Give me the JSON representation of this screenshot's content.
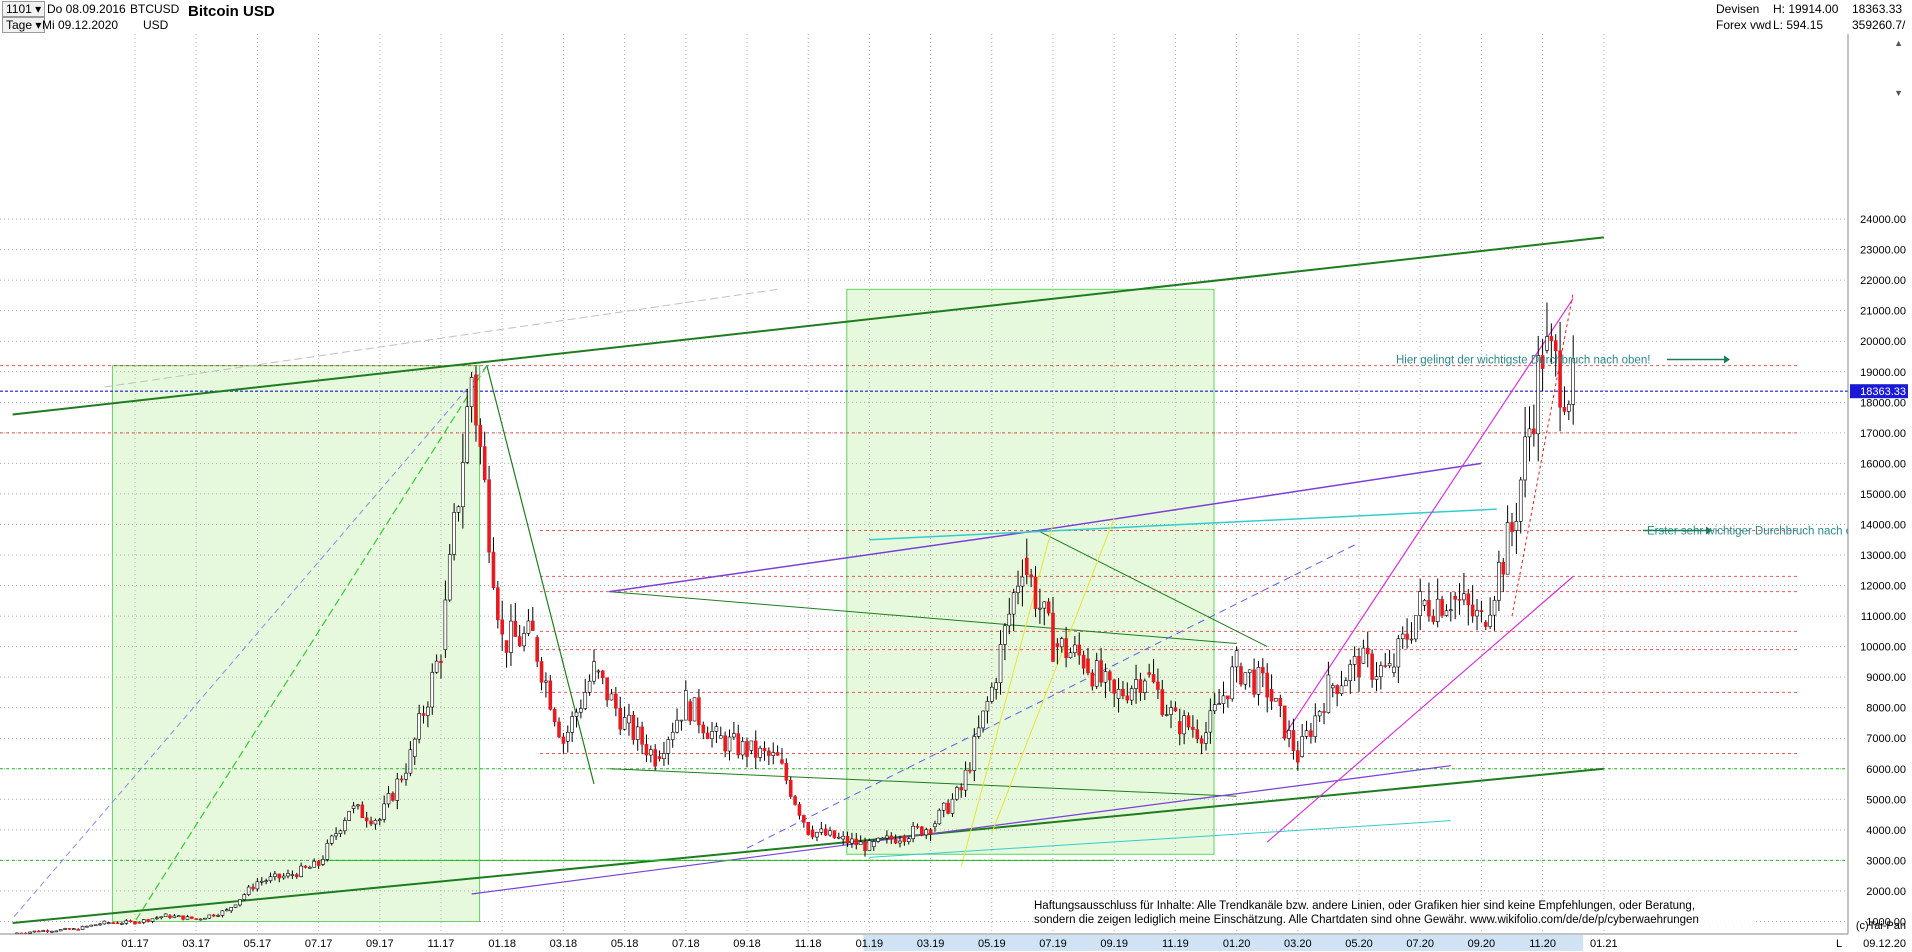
{
  "header": {
    "symbol_code": "1101",
    "timeframe": "Tage",
    "date_from": "Do 08.09.2016",
    "date_to": "Mi 09.12.2020",
    "ticker": "BTCUSD",
    "currency": "USD",
    "title": "Bitcoin USD",
    "market": "Devisen",
    "source": "Forex vwd",
    "high": "H: 19914.00",
    "low": "L: 594.15",
    "last_price": "18363.33",
    "volume": "359260.7/"
  },
  "annotations": {
    "breakout_1": "Erster sehr wichtiger Durchbruch nach oben!",
    "breakout_2": "Hier gelingt der wichtigste Durchbruch nach oben!",
    "price_tag": "18363.33",
    "disclaimer_1": "Haftungsausschluss für Inhalte: Alle Trendkanäle bzw. andere Linien, oder Grafiken hier sind keine Empfehlungen, oder Beratung,",
    "disclaimer_2": "sondern die zeigen lediglich meine  Einschätzung. Alle Chartdaten sind ohne Gewähr.  www.wikifolio.com/de/de/p/cyberwaehrungen",
    "copyright": "(c)Tai-Pan",
    "footer_date": "09.12.20",
    "footer_mode": "L"
  },
  "colors": {
    "candle_up": "#ffffff",
    "candle_down": "#e8191f",
    "trend_dark_green": "#1e7d1e",
    "channel_magenta": "#d633d6",
    "line_purple": "#7a3fd6",
    "line_cyan": "#33cccc",
    "level_red": "#e02020",
    "level_green": "#22bb22",
    "last_price_blue": "#1a1ad6",
    "zone_fill": "#dff7d2"
  },
  "chart_data": {
    "type": "candlestick",
    "title": "Bitcoin USD",
    "xlabel": "",
    "ylabel": "",
    "ylim": [
      400,
      24400
    ],
    "grid": true,
    "x_tick_labels": [
      "01.17",
      "03.17",
      "05.17",
      "07.17",
      "09.17",
      "11.17",
      "01.18",
      "03.18",
      "05.18",
      "07.18",
      "09.18",
      "11.18",
      "01.19",
      "03.19",
      "05.19",
      "07.19",
      "09.19",
      "11.19",
      "01.20",
      "03.20",
      "05.20",
      "07.20",
      "09.20",
      "11.20",
      "01.21"
    ],
    "y_ticks": [
      1000,
      2000,
      3000,
      4000,
      5000,
      6000,
      7000,
      8000,
      9000,
      10000,
      11000,
      12000,
      13000,
      14000,
      15000,
      16000,
      17000,
      18000,
      19000,
      20000,
      21000,
      22000,
      23000,
      24000
    ],
    "y_tick_labels": [
      "1000.00",
      "2000.00",
      "3000.00",
      "4000.00",
      "5000.00",
      "6000.00",
      "7000.00",
      "8000.00",
      "9000.00",
      "10000.00",
      "11000.00",
      "12000.00",
      "13000.00",
      "14000.00",
      "15000.00",
      "16000.00",
      "17000.00",
      "18000.00",
      "19000.00",
      "20000.00",
      "21000.00",
      "22000.00",
      "23000.00",
      "24000.00"
    ],
    "last_price": 18363.33,
    "high": 19914.0,
    "low": 594.15,
    "price_path_monthly": [
      [
        "2016-09",
        610
      ],
      [
        "2016-10",
        700
      ],
      [
        "2016-11",
        740
      ],
      [
        "2016-12",
        960
      ],
      [
        "2017-01",
        970
      ],
      [
        "2017-02",
        1190
      ],
      [
        "2017-03",
        1080
      ],
      [
        "2017-04",
        1350
      ],
      [
        "2017-05",
        2300
      ],
      [
        "2017-06",
        2500
      ],
      [
        "2017-07",
        2870
      ],
      [
        "2017-08",
        4700
      ],
      [
        "2017-09",
        4340
      ],
      [
        "2017-10",
        6400
      ],
      [
        "2017-11",
        9900
      ],
      [
        "2017-12",
        18900
      ],
      [
        "2018-01",
        10200
      ],
      [
        "2018-02",
        10300
      ],
      [
        "2018-03",
        6900
      ],
      [
        "2018-04",
        9200
      ],
      [
        "2018-05",
        7500
      ],
      [
        "2018-06",
        6400
      ],
      [
        "2018-07",
        8200
      ],
      [
        "2018-08",
        7000
      ],
      [
        "2018-09",
        6600
      ],
      [
        "2018-10",
        6300
      ],
      [
        "2018-11",
        4000
      ],
      [
        "2018-12",
        3700
      ],
      [
        "2019-01",
        3450
      ],
      [
        "2019-02",
        3800
      ],
      [
        "2019-03",
        4100
      ],
      [
        "2019-04",
        5300
      ],
      [
        "2019-05",
        8600
      ],
      [
        "2019-06",
        12900
      ],
      [
        "2019-07",
        10100
      ],
      [
        "2019-08",
        9600
      ],
      [
        "2019-09",
        8300
      ],
      [
        "2019-10",
        9150
      ],
      [
        "2019-11",
        7550
      ],
      [
        "2019-12",
        7200
      ],
      [
        "2020-01",
        9350
      ],
      [
        "2020-02",
        8600
      ],
      [
        "2020-03",
        6400
      ],
      [
        "2020-04",
        8650
      ],
      [
        "2020-05",
        9450
      ],
      [
        "2020-06",
        9150
      ],
      [
        "2020-07",
        11350
      ],
      [
        "2020-08",
        11650
      ],
      [
        "2020-09",
        10800
      ],
      [
        "2020-10",
        13800
      ],
      [
        "2020-11",
        19700
      ],
      [
        "2020-12",
        18363
      ]
    ],
    "horizontal_levels_red": [
      19200,
      17000,
      13800,
      12300,
      11800,
      10500,
      9900,
      8500,
      6500
    ],
    "horizontal_levels_green": [
      6000,
      3000
    ],
    "zones": [
      {
        "from": "2016-12",
        "to": "2017-12",
        "low": 1000,
        "high": 19200
      },
      {
        "from": "2018-12",
        "to": "2019-12",
        "low": 3200,
        "high": 21700
      }
    ]
  }
}
